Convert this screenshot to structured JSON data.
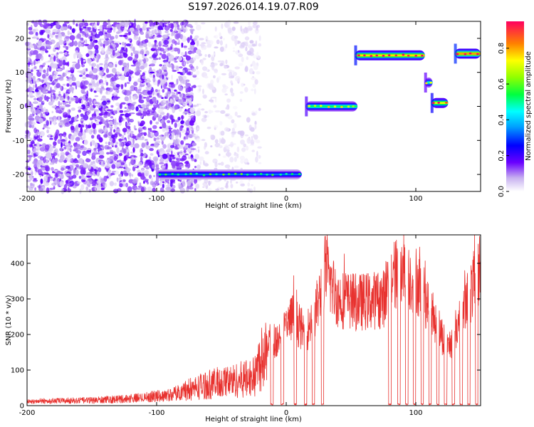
{
  "title": "S197.2026.014.19.07.R09",
  "chart_data": [
    {
      "type": "heatmap",
      "xlabel": "Height of straight line (km)",
      "ylabel": "Frequency (Hz)",
      "xlim": [
        -200,
        150
      ],
      "ylim": [
        -25,
        25
      ],
      "x_ticks": [
        "-200",
        "-100",
        "0",
        "100"
      ],
      "y_ticks": [
        "-20",
        "-10",
        "0",
        "10",
        "20"
      ],
      "colorbar": {
        "label": "Normalized spectral amplitude",
        "range": [
          0,
          0.95
        ],
        "ticks": [
          "0.0",
          "0.2",
          "0.4",
          "0.6",
          "0.8"
        ]
      },
      "regions": [
        {
          "kind": "noise",
          "x_range": [
            -200,
            -70
          ],
          "freq_range": [
            -25,
            25
          ],
          "amplitude": 0.1
        },
        {
          "kind": "noise",
          "x_range": [
            -70,
            -20
          ],
          "freq_range": [
            -25,
            25
          ],
          "amplitude": 0.03
        }
      ],
      "tracks": [
        {
          "x_range": [
            -100,
            12
          ],
          "freq": -20,
          "amplitude": 0.35
        },
        {
          "x_range": [
            15,
            55
          ],
          "freq": 0,
          "amplitude": 0.55
        },
        {
          "x_range": [
            53,
            107
          ],
          "freq": 15,
          "amplitude": 0.8
        },
        {
          "x_range": [
            107,
            113
          ],
          "freq": 7,
          "amplitude": 0.5
        },
        {
          "x_range": [
            112,
            125
          ],
          "freq": 1,
          "amplitude": 0.75
        },
        {
          "x_range": [
            130,
            150
          ],
          "freq": 15.5,
          "amplitude": 0.85
        }
      ]
    },
    {
      "type": "line",
      "xlabel": "Height of straight line (km)",
      "ylabel": "SNR (10 * v/v)",
      "xlim": [
        -200,
        150
      ],
      "ylim": [
        0,
        480
      ],
      "x_ticks": [
        "-200",
        "-100",
        "0",
        "100"
      ],
      "y_ticks": [
        "0",
        "100",
        "200",
        "300",
        "400"
      ],
      "color": "#e8322f",
      "profile": [
        [
          -200,
          12
        ],
        [
          -150,
          15
        ],
        [
          -120,
          20
        ],
        [
          -90,
          30
        ],
        [
          -80,
          40
        ],
        [
          -60,
          60
        ],
        [
          -40,
          70
        ],
        [
          -25,
          80
        ],
        [
          -15,
          180
        ],
        [
          -5,
          190
        ],
        [
          5,
          250
        ],
        [
          15,
          200
        ],
        [
          25,
          290
        ],
        [
          30,
          380
        ],
        [
          40,
          300
        ],
        [
          55,
          290
        ],
        [
          75,
          300
        ],
        [
          80,
          370
        ],
        [
          100,
          360
        ],
        [
          125,
          160
        ],
        [
          150,
          390
        ]
      ],
      "dropouts": [
        [
          -12,
          -10
        ],
        [
          -4,
          -2
        ],
        [
          6,
          8
        ],
        [
          14,
          16
        ],
        [
          20,
          22
        ],
        [
          27,
          29
        ],
        [
          79,
          81
        ],
        [
          86,
          88
        ],
        [
          92,
          94
        ],
        [
          98,
          100
        ],
        [
          104,
          106
        ],
        [
          110,
          112
        ],
        [
          116,
          118
        ],
        [
          122,
          124
        ],
        [
          128,
          130
        ],
        [
          134,
          136
        ],
        [
          140,
          142
        ],
        [
          146,
          148
        ]
      ],
      "noise_fraction": 0.28
    }
  ]
}
